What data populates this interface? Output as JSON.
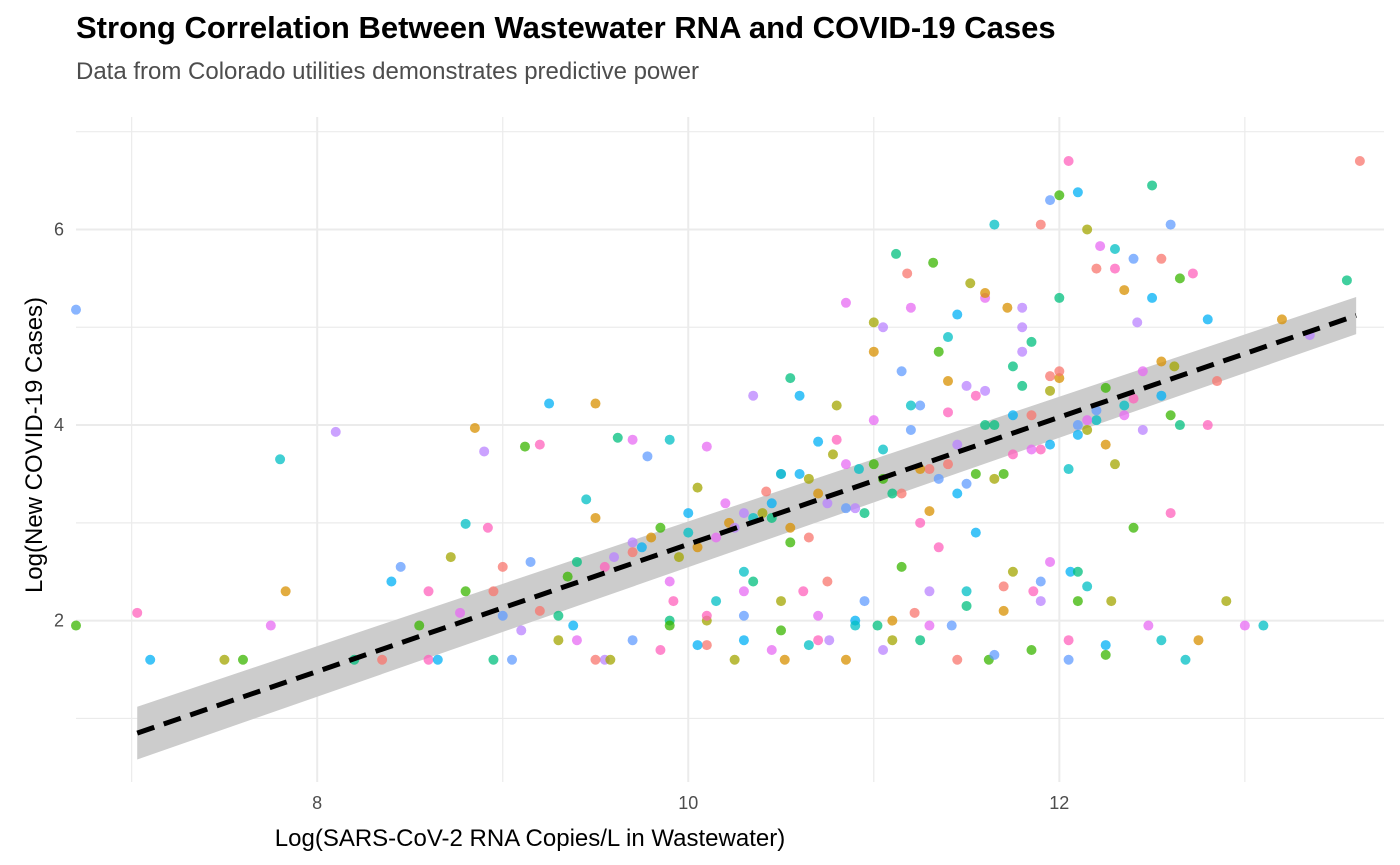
{
  "chart_data": {
    "type": "scatter",
    "title": "Strong Correlation Between Wastewater RNA and COVID-19 Cases",
    "subtitle": "Data from Colorado utilities demonstrates predictive power",
    "xlabel": "Log(SARS-CoV-2 RNA Copies/L in Wastewater)",
    "ylabel": "Log(New COVID-19 Cases)",
    "xlim": [
      6.7,
      13.75
    ],
    "ylim": [
      0.35,
      7.15
    ],
    "xticks": [
      8,
      10,
      12
    ],
    "yticks": [
      2,
      4,
      6
    ],
    "grid": true,
    "legend": "none",
    "trend": {
      "style": "dashed",
      "color": "#000000",
      "x": [
        7.03,
        13.6
      ],
      "y": [
        0.85,
        5.12
      ],
      "ci_half_width_low_end": 0.27,
      "ci_half_width_high_end": 0.19,
      "ci_color": "#cccccc"
    },
    "palette": [
      "#F8766D",
      "#D89000",
      "#A3A500",
      "#39B600",
      "#00BF7D",
      "#00BFC4",
      "#00B0F6",
      "#619CFF",
      "#B983FF",
      "#E76BF3",
      "#FF62BC"
    ],
    "points_x": [
      6.7,
      7.03,
      7.1,
      7.5,
      7.75,
      7.8,
      7.83,
      8.1,
      8.2,
      8.35,
      8.45,
      8.55,
      8.6,
      8.65,
      8.72,
      8.77,
      8.8,
      8.85,
      8.9,
      8.95,
      9.0,
      9.05,
      9.12,
      9.2,
      9.25,
      9.3,
      9.4,
      9.45,
      9.5,
      9.55,
      9.62,
      9.7,
      9.78,
      9.85,
      9.92,
      10.0,
      10.05,
      10.1,
      10.15,
      10.22,
      10.3,
      10.35,
      10.42,
      10.5,
      10.55,
      10.62,
      10.7,
      10.78,
      10.85,
      10.92,
      11.0,
      11.05,
      11.12,
      11.18,
      11.25,
      11.32,
      11.4,
      11.45,
      11.52,
      11.6,
      11.65,
      11.72,
      11.8,
      11.85,
      11.9,
      11.95,
      12.0,
      12.05,
      12.1,
      12.15,
      12.22,
      12.3,
      12.35,
      12.42,
      12.5,
      12.55,
      12.6,
      12.65,
      12.72,
      12.8,
      12.9,
      13.0,
      13.1,
      13.2,
      13.35,
      13.55,
      13.62,
      6.7,
      7.6,
      8.92,
      9.38,
      9.58,
      9.9,
      10.3,
      10.52,
      10.76,
      11.02,
      11.22,
      11.42,
      11.62,
      11.86,
      12.06,
      12.28,
      12.48,
      12.68,
      11.3,
      11.5,
      11.75,
      11.95,
      12.1,
      12.25,
      12.4,
      12.55,
      12.62,
      12.45,
      12.2,
      12.0,
      11.8,
      11.6,
      11.4,
      11.2,
      11.0,
      10.8,
      10.6,
      10.4,
      10.2,
      10.0,
      9.8,
      9.6,
      9.4,
      9.2,
      9.0,
      8.8,
      8.6,
      8.4,
      10.1,
      10.3,
      10.5,
      10.7,
      10.9,
      11.1,
      11.3,
      11.5,
      11.7,
      11.9,
      12.1,
      12.3,
      9.7,
      9.9,
      10.05,
      10.25,
      10.45,
      10.65,
      10.85,
      11.05,
      11.25,
      11.45,
      11.65,
      11.85,
      12.05,
      12.25,
      12.45,
      12.65,
      12.85,
      11.15,
      11.35,
      11.55,
      11.75,
      11.95,
      12.15,
      12.35,
      12.55,
      10.35,
      10.55,
      10.75,
      10.95,
      11.15,
      11.35,
      11.55,
      11.75,
      11.95,
      12.15,
      9.5,
      9.7,
      9.9,
      10.1,
      10.3,
      10.5,
      10.7,
      10.9,
      11.1,
      11.3,
      11.5,
      11.7,
      11.9,
      12.1,
      8.95,
      9.15,
      9.35,
      9.55,
      9.75,
      9.95,
      10.15,
      10.35,
      10.55,
      10.75,
      10.95,
      11.15,
      11.35,
      11.55,
      11.75,
      11.95,
      12.15,
      12.35,
      12.55,
      12.75,
      9.1,
      9.3,
      9.5,
      9.7,
      9.9,
      10.1,
      10.3,
      10.5,
      10.7,
      10.9,
      11.1,
      11.3,
      11.5,
      11.7,
      11.9,
      12.1,
      12.3,
      12.5,
      11.0,
      11.2,
      11.4,
      11.6,
      11.8,
      12.0,
      12.2,
      12.4,
      12.6,
      12.8,
      10.6,
      10.8,
      11.0,
      11.2,
      11.4,
      11.6,
      11.8,
      12.0,
      12.2,
      12.4,
      12.6,
      10.45,
      10.65,
      10.85,
      11.05,
      11.25,
      11.45,
      11.65,
      11.85,
      12.05,
      12.25,
      9.85,
      10.05,
      10.25,
      10.45,
      10.65,
      10.85,
      11.05,
      11.25,
      11.45,
      11.65,
      11.85,
      12.05,
      12.25,
      12.45,
      12.65
    ],
    "points_y": [
      1.95,
      2.08,
      1.6,
      1.6,
      1.95,
      3.65,
      2.3,
      3.93,
      1.6,
      1.6,
      2.55,
      1.95,
      1.6,
      1.6,
      2.65,
      2.08,
      2.99,
      3.97,
      3.73,
      1.6,
      2.55,
      1.6,
      3.78,
      3.8,
      4.22,
      1.8,
      1.8,
      3.24,
      4.22,
      1.6,
      3.87,
      2.7,
      3.68,
      2.95,
      2.2,
      3.1,
      3.36,
      3.78,
      2.2,
      3.0,
      3.1,
      2.4,
      3.32,
      3.5,
      2.8,
      2.3,
      3.83,
      3.7,
      5.25,
      3.55,
      4.75,
      5.0,
      5.75,
      5.55,
      4.2,
      5.66,
      4.13,
      5.13,
      5.45,
      5.3,
      6.05,
      5.2,
      5.0,
      4.85,
      6.05,
      6.3,
      6.35,
      6.7,
      6.38,
      6.0,
      5.83,
      5.8,
      5.38,
      5.05,
      6.45,
      5.7,
      6.05,
      5.5,
      5.55,
      5.08,
      2.2,
      1.95,
      1.95,
      5.08,
      4.92,
      5.48,
      6.7,
      5.18,
      1.6,
      2.95,
      1.95,
      1.6,
      2.4,
      2.5,
      1.6,
      1.8,
      1.95,
      2.08,
      1.95,
      1.6,
      2.3,
      2.5,
      2.2,
      1.95,
      1.6,
      3.12,
      4.4,
      4.6,
      4.5,
      4.0,
      4.38,
      4.27,
      4.3,
      4.6,
      4.55,
      4.05,
      4.48,
      4.75,
      4.0,
      3.6,
      3.95,
      3.6,
      3.85,
      3.5,
      3.1,
      3.2,
      2.9,
      2.85,
      2.65,
      2.6,
      2.1,
      2.05,
      2.3,
      2.3,
      2.4,
      2.0,
      2.3,
      3.5,
      3.3,
      3.15,
      3.3,
      3.55,
      3.4,
      3.5,
      3.75,
      3.9,
      3.6,
      3.85,
      3.85,
      2.75,
      2.95,
      3.05,
      2.85,
      3.15,
      3.45,
      3.0,
      3.3,
      3.45,
      3.75,
      3.55,
      3.8,
      3.95,
      4.0,
      4.45,
      4.55,
      4.75,
      4.3,
      4.1,
      4.35,
      4.05,
      4.2,
      4.65,
      4.3,
      4.48,
      2.4,
      2.2,
      2.55,
      2.75,
      2.9,
      2.5,
      2.6,
      2.35,
      3.05,
      2.8,
      2.0,
      1.75,
      2.05,
      1.9,
      1.8,
      2.0,
      1.8,
      1.95,
      2.3,
      2.1,
      2.2,
      2.5,
      2.3,
      2.6,
      2.45,
      2.55,
      2.75,
      2.65,
      2.85,
      3.05,
      2.95,
      3.2,
      3.1,
      3.3,
      3.45,
      3.5,
      3.7,
      3.8,
      3.95,
      4.1,
      1.8,
      1.8,
      1.9,
      2.05,
      1.6,
      1.8,
      1.95,
      2.05,
      1.8,
      2.2,
      2.05,
      1.95,
      2.0,
      2.3,
      2.15,
      2.35,
      2.4,
      2.2,
      5.6,
      5.3,
      5.05,
      5.2,
      4.9,
      5.35,
      5.2,
      5.3,
      5.6,
      5.7,
      4.1,
      4.0,
      4.3,
      4.2,
      4.05,
      4.2,
      4.45,
      4.35,
      4.4,
      4.55,
      4.15,
      2.95,
      3.1,
      3.2,
      3.45,
      3.6,
      3.75,
      3.55,
      3.8,
      4.0,
      4.1,
      1.6,
      1.65,
      1.7,
      1.75,
      1.6,
      1.7,
      1.75,
      1.6,
      1.7,
      1.8,
      1.6,
      1.65,
      1.7,
      1.8,
      1.75
    ]
  }
}
